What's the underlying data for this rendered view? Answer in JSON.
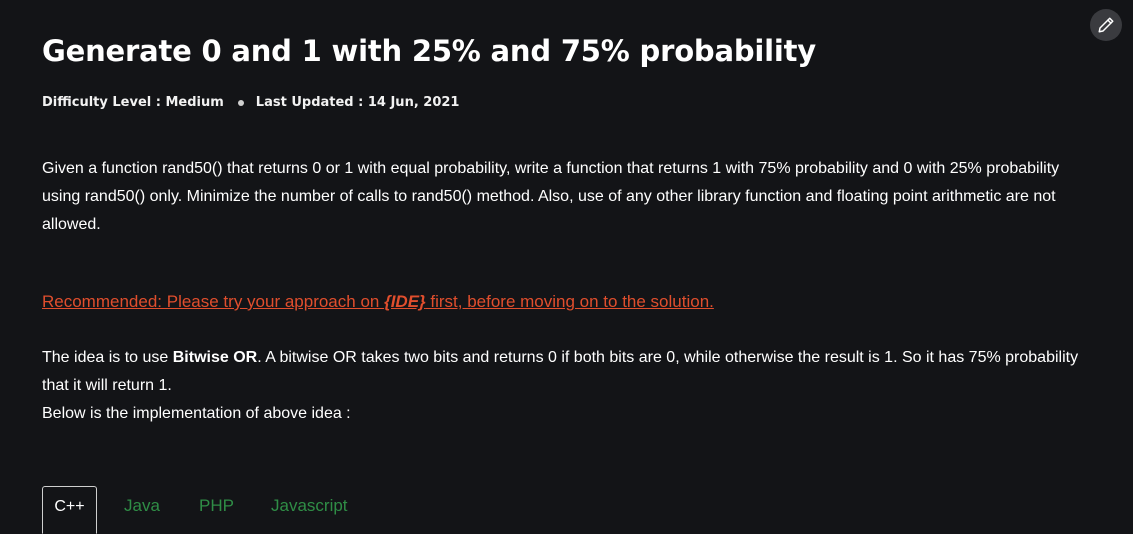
{
  "article": {
    "title": "Generate 0 and 1 with 25% and 75% probability",
    "difficulty": "Difficulty Level : Medium",
    "last_updated": "Last Updated : 14 Jun, 2021",
    "intro": "Given a function rand50() that returns 0 or 1 with equal probability, write a function that returns 1 with 75% probability and 0 with 25% probability using rand50() only. Minimize the number of calls to rand50() method. Also, use of any other library function and floating point arithmetic are not allowed.",
    "recommended": {
      "prefix": "Recommended: Please try your approach on ",
      "ide": "{IDE}",
      "suffix": " first, before moving on to the solution."
    },
    "idea": {
      "before": "The idea is to use ",
      "bold": "Bitwise OR",
      "after": ". A bitwise OR takes two bits and returns 0 if both bits are 0, while otherwise the result is 1. So it has 75% probability that it will return 1.",
      "line2": "Below is the implementation of above idea :"
    }
  },
  "tabs": [
    {
      "label": "C++",
      "active": true
    },
    {
      "label": "Java",
      "active": false
    },
    {
      "label": "PHP",
      "active": false
    },
    {
      "label": "Javascript",
      "active": false
    }
  ],
  "colors": {
    "background": "#131417",
    "link": "#e04e2d",
    "tab_text": "#2f8d46"
  },
  "icons": {
    "edit": "pencil-icon"
  }
}
